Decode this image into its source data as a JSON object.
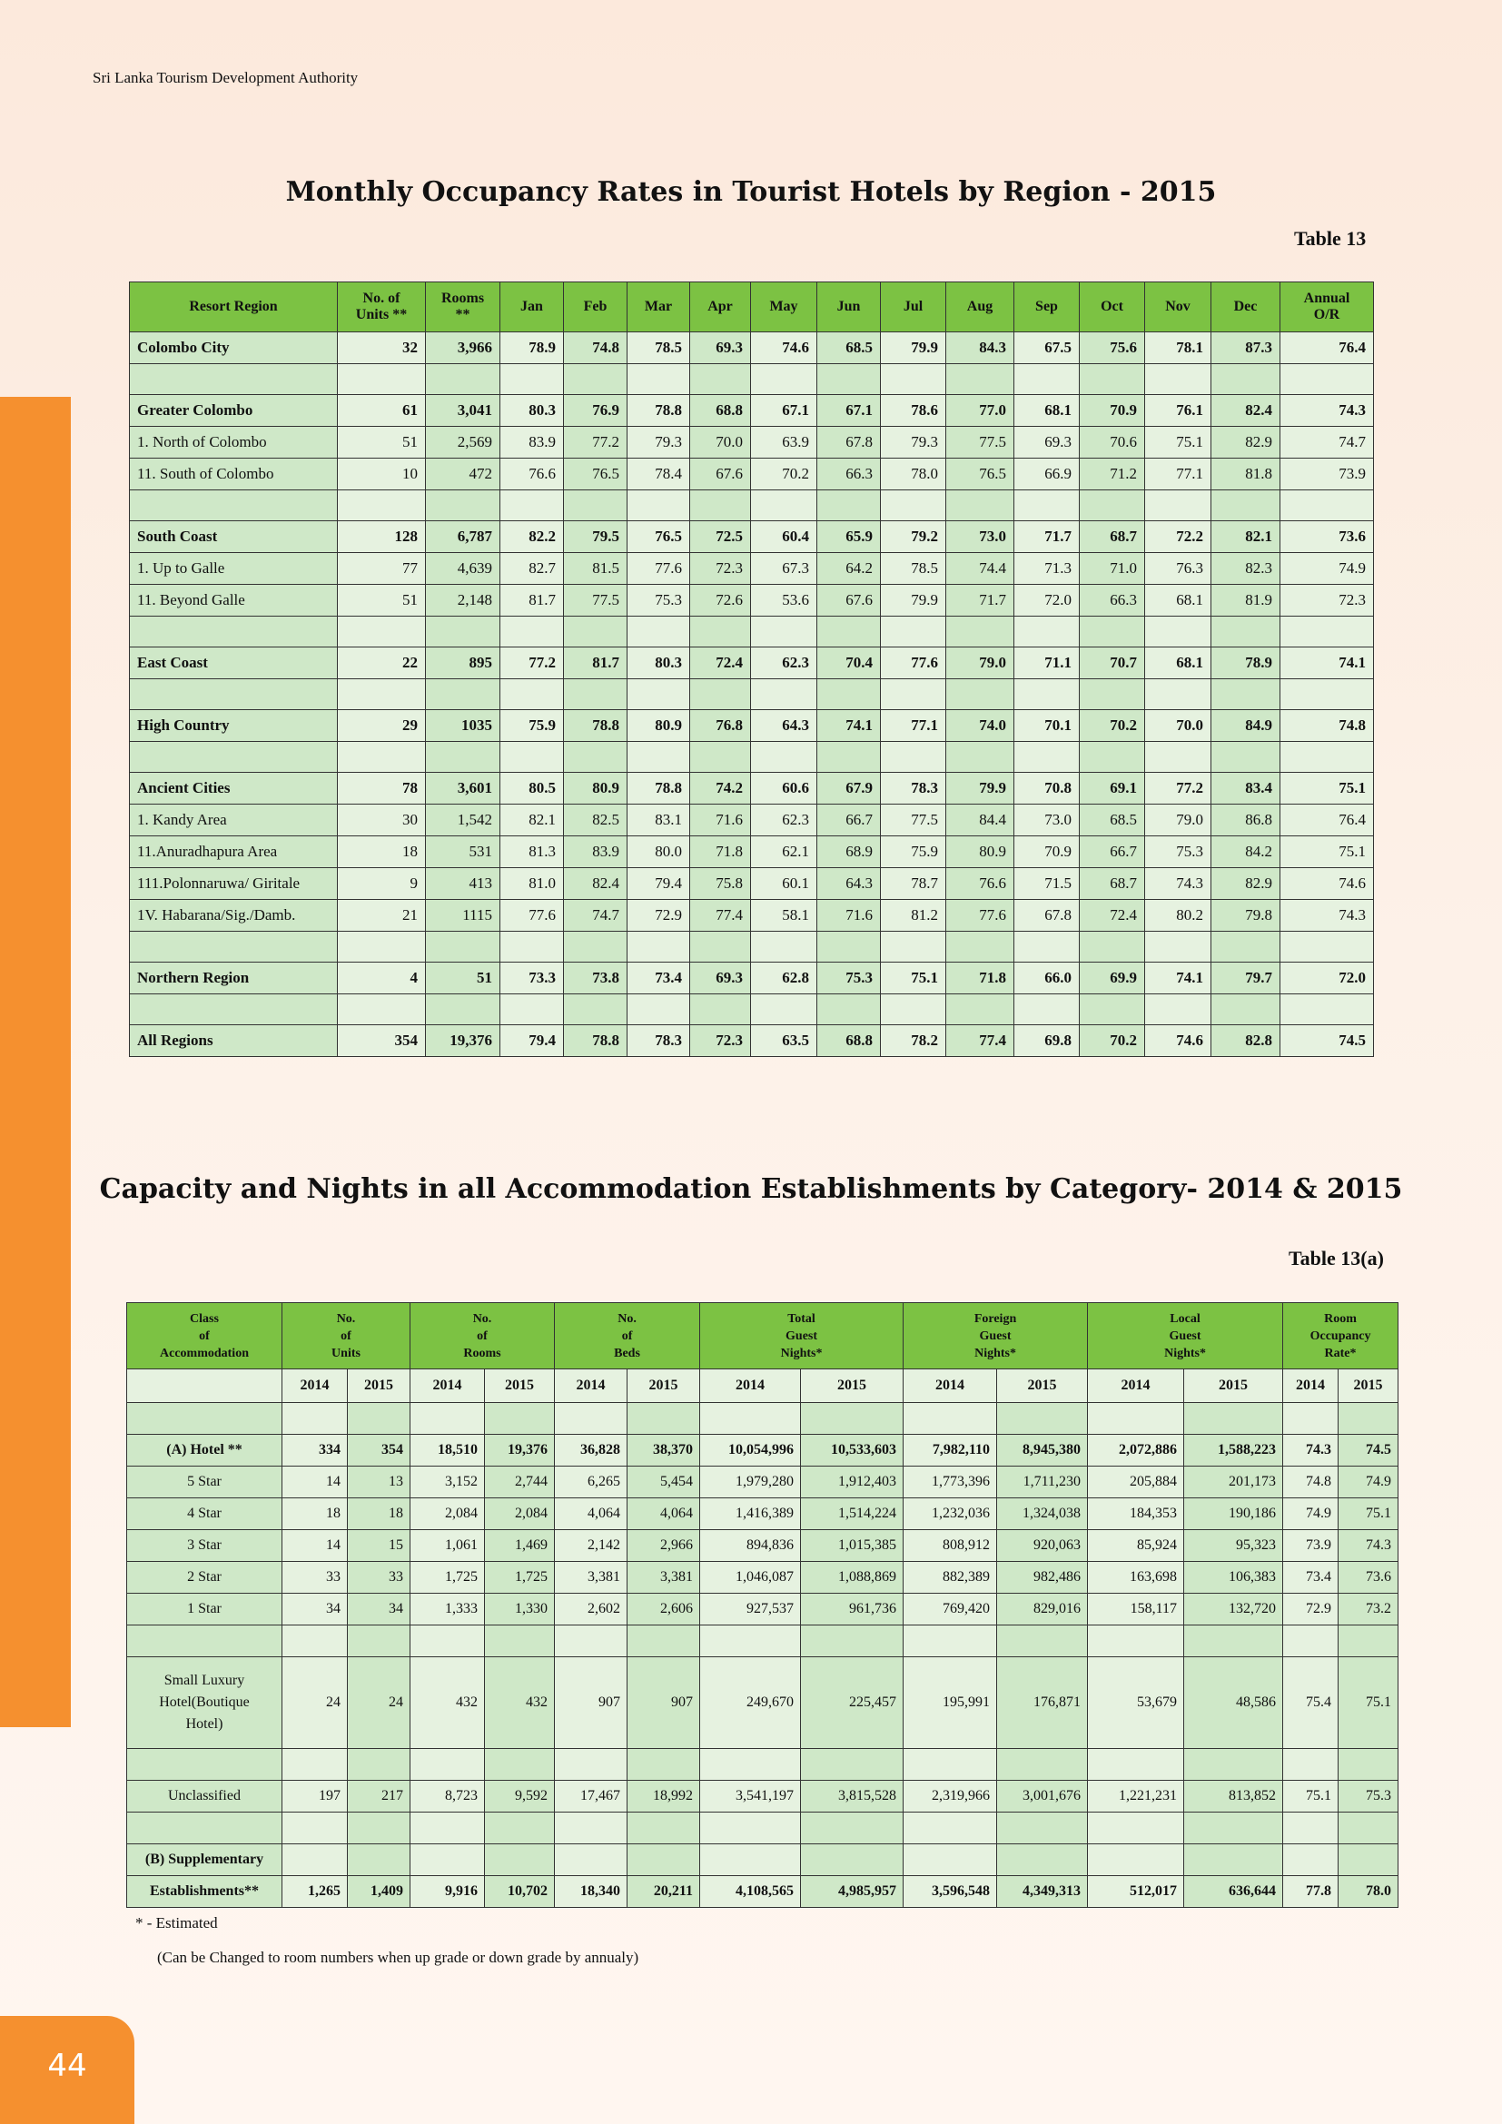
{
  "header": {
    "org": "Sri Lanka Tourism Development Authority"
  },
  "page_number": "44",
  "table13": {
    "title": "Monthly Occupancy Rates in Tourist Hotels by Region - 2015",
    "label": "Table 13",
    "headers": [
      "Resort Region",
      "No. of\nUnits **",
      "Rooms\n**",
      "Jan",
      "Feb",
      "Mar",
      "Apr",
      "May",
      "Jun",
      "Jul",
      "Aug",
      "Sep",
      "Oct",
      "Nov",
      "Dec",
      "Annual\nO/R"
    ],
    "rows": [
      {
        "bold": true,
        "cells": [
          "Colombo City",
          "32",
          "3,966",
          "78.9",
          "74.8",
          "78.5",
          "69.3",
          "74.6",
          "68.5",
          "79.9",
          "84.3",
          "67.5",
          "75.6",
          "78.1",
          "87.3",
          "76.4"
        ]
      },
      {
        "spacer": true
      },
      {
        "bold": true,
        "cells": [
          "Greater Colombo",
          "61",
          "3,041",
          "80.3",
          "76.9",
          "78.8",
          "68.8",
          "67.1",
          "67.1",
          "78.6",
          "77.0",
          "68.1",
          "70.9",
          "76.1",
          "82.4",
          "74.3"
        ]
      },
      {
        "cells": [
          "1. North of Colombo",
          "51",
          "2,569",
          "83.9",
          "77.2",
          "79.3",
          "70.0",
          "63.9",
          "67.8",
          "79.3",
          "77.5",
          "69.3",
          "70.6",
          "75.1",
          "82.9",
          "74.7"
        ]
      },
      {
        "cells": [
          "11. South of Colombo",
          "10",
          "472",
          "76.6",
          "76.5",
          "78.4",
          "67.6",
          "70.2",
          "66.3",
          "78.0",
          "76.5",
          "66.9",
          "71.2",
          "77.1",
          "81.8",
          "73.9"
        ]
      },
      {
        "spacer": true
      },
      {
        "bold": true,
        "cells": [
          "South Coast",
          "128",
          "6,787",
          "82.2",
          "79.5",
          "76.5",
          "72.5",
          "60.4",
          "65.9",
          "79.2",
          "73.0",
          "71.7",
          "68.7",
          "72.2",
          "82.1",
          "73.6"
        ]
      },
      {
        "cells": [
          "1. Up to Galle",
          "77",
          "4,639",
          "82.7",
          "81.5",
          "77.6",
          "72.3",
          "67.3",
          "64.2",
          "78.5",
          "74.4",
          "71.3",
          "71.0",
          "76.3",
          "82.3",
          "74.9"
        ]
      },
      {
        "cells": [
          "11. Beyond Galle",
          "51",
          "2,148",
          "81.7",
          "77.5",
          "75.3",
          "72.6",
          "53.6",
          "67.6",
          "79.9",
          "71.7",
          "72.0",
          "66.3",
          "68.1",
          "81.9",
          "72.3"
        ]
      },
      {
        "spacer": true
      },
      {
        "bold": true,
        "cells": [
          "East Coast",
          "22",
          "895",
          "77.2",
          "81.7",
          "80.3",
          "72.4",
          "62.3",
          "70.4",
          "77.6",
          "79.0",
          "71.1",
          "70.7",
          "68.1",
          "78.9",
          "74.1"
        ]
      },
      {
        "spacer": true
      },
      {
        "bold": true,
        "cells": [
          "High Country",
          "29",
          "1035",
          "75.9",
          "78.8",
          "80.9",
          "76.8",
          "64.3",
          "74.1",
          "77.1",
          "74.0",
          "70.1",
          "70.2",
          "70.0",
          "84.9",
          "74.8"
        ]
      },
      {
        "spacer": true
      },
      {
        "bold": true,
        "cells": [
          "Ancient Cities",
          "78",
          "3,601",
          "80.5",
          "80.9",
          "78.8",
          "74.2",
          "60.6",
          "67.9",
          "78.3",
          "79.9",
          "70.8",
          "69.1",
          "77.2",
          "83.4",
          "75.1"
        ]
      },
      {
        "cells": [
          "1. Kandy Area",
          "30",
          "1,542",
          "82.1",
          "82.5",
          "83.1",
          "71.6",
          "62.3",
          "66.7",
          "77.5",
          "84.4",
          "73.0",
          "68.5",
          "79.0",
          "86.8",
          "76.4"
        ]
      },
      {
        "cells": [
          "11.Anuradhapura Area",
          "18",
          "531",
          "81.3",
          "83.9",
          "80.0",
          "71.8",
          "62.1",
          "68.9",
          "75.9",
          "80.9",
          "70.9",
          "66.7",
          "75.3",
          "84.2",
          "75.1"
        ]
      },
      {
        "cells": [
          "111.Polonnaruwa/ Giritale",
          "9",
          "413",
          "81.0",
          "82.4",
          "79.4",
          "75.8",
          "60.1",
          "64.3",
          "78.7",
          "76.6",
          "71.5",
          "68.7",
          "74.3",
          "82.9",
          "74.6"
        ]
      },
      {
        "cells": [
          "1V. Habarana/Sig./Damb.",
          "21",
          "1115",
          "77.6",
          "74.7",
          "72.9",
          "77.4",
          "58.1",
          "71.6",
          "81.2",
          "77.6",
          "67.8",
          "72.4",
          "80.2",
          "79.8",
          "74.3"
        ]
      },
      {
        "spacer": true
      },
      {
        "bold": true,
        "cells": [
          "Northern Region",
          "4",
          "51",
          "73.3",
          "73.8",
          "73.4",
          "69.3",
          "62.8",
          "75.3",
          "75.1",
          "71.8",
          "66.0",
          "69.9",
          "74.1",
          "79.7",
          "72.0"
        ]
      },
      {
        "spacer": true
      },
      {
        "bold": true,
        "cells": [
          "All Regions",
          "354",
          "19,376",
          "79.4",
          "78.8",
          "78.3",
          "72.3",
          "63.5",
          "68.8",
          "78.2",
          "77.4",
          "69.8",
          "70.2",
          "74.6",
          "82.8",
          "74.5"
        ]
      }
    ]
  },
  "table13a": {
    "title": "Capacity and Nights in all Accommodation Establishments by Category- 2014 & 2015",
    "label": "Table 13(a)",
    "group_headers": [
      "Class\nof\nAccommodation",
      "No.\nof\nUnits",
      "No.\nof\nRooms",
      "No.\nof\nBeds",
      "Total\nGuest\nNights*",
      "Foreign\nGuest\nNights*",
      "Local\nGuest\nNights*",
      "Room\nOccupancy\nRate*"
    ],
    "years": [
      "",
      "2014",
      "2015",
      "2014",
      "2015",
      "2014",
      "2015",
      "2014",
      "2015",
      "2014",
      "2015",
      "2014",
      "2015",
      "2014",
      "2015"
    ],
    "rows": [
      {
        "spacer": true
      },
      {
        "bold": true,
        "cells": [
          "(A) Hotel **",
          "334",
          "354",
          "18,510",
          "19,376",
          "36,828",
          "38,370",
          "10,054,996",
          "10,533,603",
          "7,982,110",
          "8,945,380",
          "2,072,886",
          "1,588,223",
          "74.3",
          "74.5"
        ]
      },
      {
        "cells": [
          "5 Star",
          "14",
          "13",
          "3,152",
          "2,744",
          "6,265",
          "5,454",
          "1,979,280",
          "1,912,403",
          "1,773,396",
          "1,711,230",
          "205,884",
          "201,173",
          "74.8",
          "74.9"
        ]
      },
      {
        "cells": [
          "4 Star",
          "18",
          "18",
          "2,084",
          "2,084",
          "4,064",
          "4,064",
          "1,416,389",
          "1,514,224",
          "1,232,036",
          "1,324,038",
          "184,353",
          "190,186",
          "74.9",
          "75.1"
        ]
      },
      {
        "cells": [
          "3 Star",
          "14",
          "15",
          "1,061",
          "1,469",
          "2,142",
          "2,966",
          "894,836",
          "1,015,385",
          "808,912",
          "920,063",
          "85,924",
          "95,323",
          "73.9",
          "74.3"
        ]
      },
      {
        "cells": [
          "2 Star",
          "33",
          "33",
          "1,725",
          "1,725",
          "3,381",
          "3,381",
          "1,046,087",
          "1,088,869",
          "882,389",
          "982,486",
          "163,698",
          "106,383",
          "73.4",
          "73.6"
        ]
      },
      {
        "cells": [
          "1 Star",
          "34",
          "34",
          "1,333",
          "1,330",
          "2,602",
          "2,606",
          "927,537",
          "961,736",
          "769,420",
          "829,016",
          "158,117",
          "132,720",
          "72.9",
          "73.2"
        ]
      },
      {
        "spacer": true
      },
      {
        "tall": true,
        "cells": [
          "Small Luxury\nHotel(Boutique\nHotel)",
          "24",
          "24",
          "432",
          "432",
          "907",
          "907",
          "249,670",
          "225,457",
          "195,991",
          "176,871",
          "53,679",
          "48,586",
          "75.4",
          "75.1"
        ]
      },
      {
        "spacer": true
      },
      {
        "cells": [
          "Unclassified",
          "197",
          "217",
          "8,723",
          "9,592",
          "17,467",
          "18,992",
          "3,541,197",
          "3,815,528",
          "2,319,966",
          "3,001,676",
          "1,221,231",
          "813,852",
          "75.1",
          "75.3"
        ]
      },
      {
        "spacer": true
      },
      {
        "bold": true,
        "cells": [
          "(B) Supplementary",
          "",
          "",
          "",
          "",
          "",
          "",
          "",
          "",
          "",
          "",
          "",
          "",
          "",
          ""
        ]
      },
      {
        "bold": true,
        "cells": [
          "Establishments**",
          "1,265",
          "1,409",
          "9,916",
          "10,702",
          "18,340",
          "20,211",
          "4,108,565",
          "4,985,957",
          "3,596,548",
          "4,349,313",
          "512,017",
          "636,644",
          "77.8",
          "78.0"
        ]
      }
    ],
    "footnotes": [
      "*   -   Estimated",
      "(Can be Changed to room numbers when up grade or down grade by annualy)"
    ]
  }
}
